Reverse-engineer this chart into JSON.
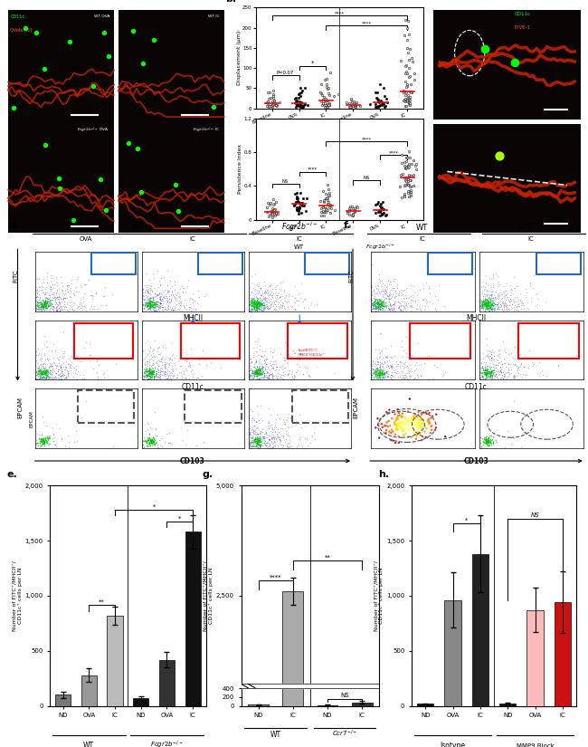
{
  "panel_e": {
    "values": [
      100,
      280,
      820,
      70,
      420,
      1580
    ],
    "errors": [
      30,
      60,
      80,
      20,
      70,
      150
    ],
    "bar_colors": [
      "#777777",
      "#999999",
      "#bbbbbb",
      "#111111",
      "#333333",
      "#111111"
    ],
    "xtick_labels": [
      "ND",
      "OVA",
      "IC",
      "ND",
      "OVA",
      "IC"
    ],
    "group_labels": [
      "WT",
      "Fcgr2b⁻/⁻"
    ],
    "ylabel": "Number of FITC⁺/MHCII⁺/\nCD11c⁺ cells per LN",
    "ylim": [
      0,
      2000
    ],
    "yticks": [
      0,
      500,
      1000,
      1500,
      2000
    ],
    "ytick_labels": [
      "0",
      "500",
      "1,000",
      "1,500",
      "2,000"
    ]
  },
  "panel_g": {
    "values": [
      30,
      2600,
      20,
      80
    ],
    "errors": [
      10,
      300,
      5,
      30
    ],
    "bar_colors": [
      "#777777",
      "#aaaaaa",
      "#111111",
      "#333333"
    ],
    "xtick_labels": [
      "ND",
      "IC",
      "ND",
      "IC"
    ],
    "group_labels": [
      "WT",
      "Ccr7⁻/⁻"
    ],
    "ylabel": "Number of FITC⁺/MHCII⁺/\nCD11c⁺ cells per LN",
    "ylim": [
      0,
      5000
    ],
    "yticks": [
      0,
      200,
      400,
      2500,
      5000
    ],
    "ytick_labels": [
      "0",
      "200",
      "400",
      "2,500",
      "5,000"
    ]
  },
  "panel_h": {
    "values": [
      20,
      960,
      1380,
      25,
      870,
      940
    ],
    "errors": [
      5,
      250,
      350,
      8,
      200,
      280
    ],
    "bar_colors": [
      "#111111",
      "#888888",
      "#222222",
      "#111111",
      "#ffbbbb",
      "#cc1111"
    ],
    "xtick_labels": [
      "ND",
      "OVA",
      "IC",
      "ND",
      "OVA",
      "IC"
    ],
    "group_labels": [
      "Isotype",
      "MMP9 Block"
    ],
    "ylabel": "Number of FITC⁺/MHCII⁺/\nCD11c⁺ cells per LN",
    "ylim": [
      0,
      2000
    ],
    "yticks": [
      0,
      500,
      1000,
      1500,
      2000
    ],
    "ytick_labels": [
      "0",
      "500",
      "1,000",
      "1,500",
      "2,000"
    ]
  }
}
